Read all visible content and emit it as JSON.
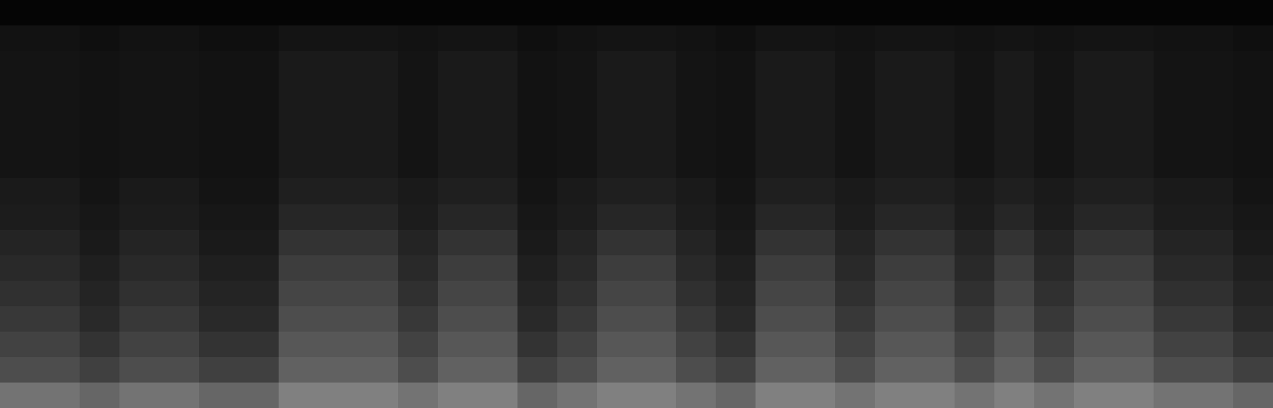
{
  "chart_data": {
    "type": "heatmap",
    "tick_labels": false,
    "grid": false,
    "zlim": [
      0,
      100
    ],
    "cells": [
      [
        45,
        45,
        40,
        45,
        45,
        40,
        40,
        50,
        50,
        50,
        45,
        50,
        50,
        40,
        45,
        50,
        50,
        45,
        40,
        50,
        50,
        45,
        50,
        50,
        45,
        50,
        45,
        50,
        50,
        45,
        45,
        40
      ],
      [
        30,
        30,
        25,
        30,
        30,
        25,
        25,
        38,
        38,
        38,
        30,
        38,
        38,
        25,
        30,
        38,
        38,
        30,
        25,
        38,
        38,
        30,
        38,
        38,
        30,
        38,
        30,
        38,
        38,
        30,
        30,
        25
      ],
      [
        26,
        26,
        20,
        26,
        26,
        20,
        20,
        34,
        34,
        34,
        26,
        34,
        34,
        20,
        26,
        34,
        34,
        26,
        20,
        34,
        34,
        26,
        34,
        34,
        26,
        34,
        26,
        34,
        34,
        26,
        26,
        20
      ],
      [
        22,
        22,
        16,
        22,
        22,
        16,
        16,
        30,
        30,
        30,
        22,
        30,
        30,
        16,
        22,
        30,
        30,
        22,
        16,
        30,
        30,
        22,
        30,
        30,
        22,
        30,
        22,
        30,
        30,
        22,
        22,
        16
      ],
      [
        19,
        19,
        14,
        19,
        19,
        14,
        14,
        27,
        27,
        27,
        19,
        27,
        27,
        14,
        19,
        27,
        27,
        19,
        14,
        27,
        27,
        19,
        27,
        27,
        19,
        27,
        19,
        27,
        27,
        19,
        19,
        14
      ],
      [
        16,
        16,
        12,
        16,
        16,
        12,
        12,
        24,
        24,
        24,
        16,
        24,
        24,
        12,
        16,
        24,
        24,
        16,
        12,
        24,
        24,
        16,
        24,
        24,
        16,
        24,
        16,
        24,
        24,
        16,
        16,
        12
      ],
      [
        14,
        14,
        10,
        14,
        14,
        10,
        10,
        20,
        20,
        20,
        14,
        20,
        20,
        10,
        14,
        20,
        20,
        14,
        10,
        20,
        20,
        14,
        20,
        20,
        14,
        20,
        14,
        20,
        20,
        14,
        14,
        10
      ],
      [
        11,
        11,
        9,
        11,
        11,
        9,
        9,
        15,
        15,
        15,
        11,
        15,
        15,
        9,
        11,
        15,
        15,
        11,
        9,
        15,
        15,
        11,
        15,
        15,
        11,
        15,
        11,
        15,
        15,
        11,
        11,
        9
      ],
      [
        10,
        10,
        8,
        10,
        10,
        8,
        8,
        12,
        12,
        12,
        10,
        12,
        12,
        8,
        10,
        12,
        12,
        10,
        8,
        12,
        12,
        10,
        12,
        12,
        10,
        12,
        10,
        12,
        12,
        10,
        10,
        8
      ],
      [
        8,
        8,
        7,
        8,
        8,
        7,
        7,
        10,
        10,
        10,
        8,
        10,
        10,
        7,
        8,
        10,
        10,
        8,
        7,
        10,
        10,
        8,
        10,
        10,
        8,
        10,
        8,
        10,
        10,
        8,
        8,
        7
      ],
      [
        8,
        8,
        7,
        8,
        8,
        7,
        7,
        10,
        10,
        10,
        8,
        10,
        10,
        7,
        8,
        10,
        10,
        8,
        7,
        10,
        10,
        8,
        10,
        10,
        8,
        10,
        8,
        10,
        10,
        8,
        8,
        7
      ],
      [
        8,
        8,
        7,
        8,
        8,
        7,
        7,
        10,
        10,
        10,
        8,
        10,
        10,
        7,
        8,
        10,
        10,
        8,
        7,
        10,
        10,
        8,
        10,
        10,
        8,
        10,
        8,
        10,
        10,
        8,
        8,
        7
      ],
      [
        8,
        8,
        7,
        8,
        8,
        7,
        7,
        10,
        10,
        10,
        8,
        10,
        10,
        7,
        8,
        10,
        10,
        8,
        7,
        10,
        10,
        8,
        10,
        10,
        8,
        10,
        8,
        10,
        10,
        8,
        8,
        7
      ],
      [
        8,
        8,
        7,
        8,
        8,
        7,
        7,
        10,
        10,
        10,
        8,
        10,
        10,
        7,
        8,
        10,
        10,
        8,
        7,
        10,
        10,
        8,
        10,
        10,
        8,
        10,
        8,
        10,
        10,
        8,
        8,
        7
      ],
      [
        7,
        7,
        6,
        7,
        7,
        6,
        6,
        8,
        8,
        8,
        7,
        8,
        8,
        6,
        7,
        8,
        8,
        7,
        6,
        8,
        8,
        7,
        8,
        8,
        7,
        8,
        7,
        8,
        8,
        7,
        7,
        6
      ],
      [
        2,
        2,
        2,
        2,
        2,
        2,
        2,
        2,
        2,
        2,
        2,
        2,
        2,
        2,
        2,
        2,
        2,
        2,
        2,
        2,
        2,
        2,
        2,
        2,
        2,
        2,
        2,
        2,
        2,
        2,
        2,
        2
      ]
    ]
  }
}
